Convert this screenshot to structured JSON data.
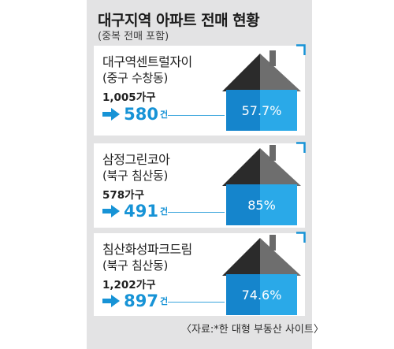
{
  "header": {
    "title": "대구지역 아파트 전매 현황",
    "subtitle": "(중복 전매 포함)"
  },
  "cards": [
    {
      "name": "대구역센트럴자이",
      "location": "(중구 수창동)",
      "units_label": "1,005가구",
      "sales_label": "580",
      "sales_unit": "건",
      "percent_label": "57.7%"
    },
    {
      "name": "삼정그린코아",
      "location": "(북구 침산동)",
      "units_label": "578가구",
      "sales_label": "491",
      "sales_unit": "건",
      "percent_label": "85%"
    },
    {
      "name": "침산화성파크드림",
      "location": "(북구 침산동)",
      "units_label": "1,202가구",
      "sales_label": "897",
      "sales_unit": "건",
      "percent_label": "74.6%"
    }
  ],
  "source": "〈자료:*한 대형 부동산 사이트〉",
  "chart_data": {
    "type": "bar",
    "title": "대구지역 아파트 전매 현황",
    "subtitle": "(중복 전매 포함)",
    "categories": [
      "대구역센트럴자이",
      "삼정그린코아",
      "침산화성파크드림"
    ],
    "series": [
      {
        "values": [
          580,
          491,
          897
        ]
      }
    ],
    "units_total": [
      1005,
      578,
      1202
    ],
    "percent": [
      57.7,
      85,
      74.6
    ],
    "colors": {
      "fill_light": "#2aa9e8",
      "fill_dark": "#1585cc",
      "roof_dark": "#2b2b2b",
      "roof_light": "#6e6e6e",
      "house_dark": "#333333",
      "house_light": "#6a6a6a",
      "accent": "#1793d6"
    }
  }
}
